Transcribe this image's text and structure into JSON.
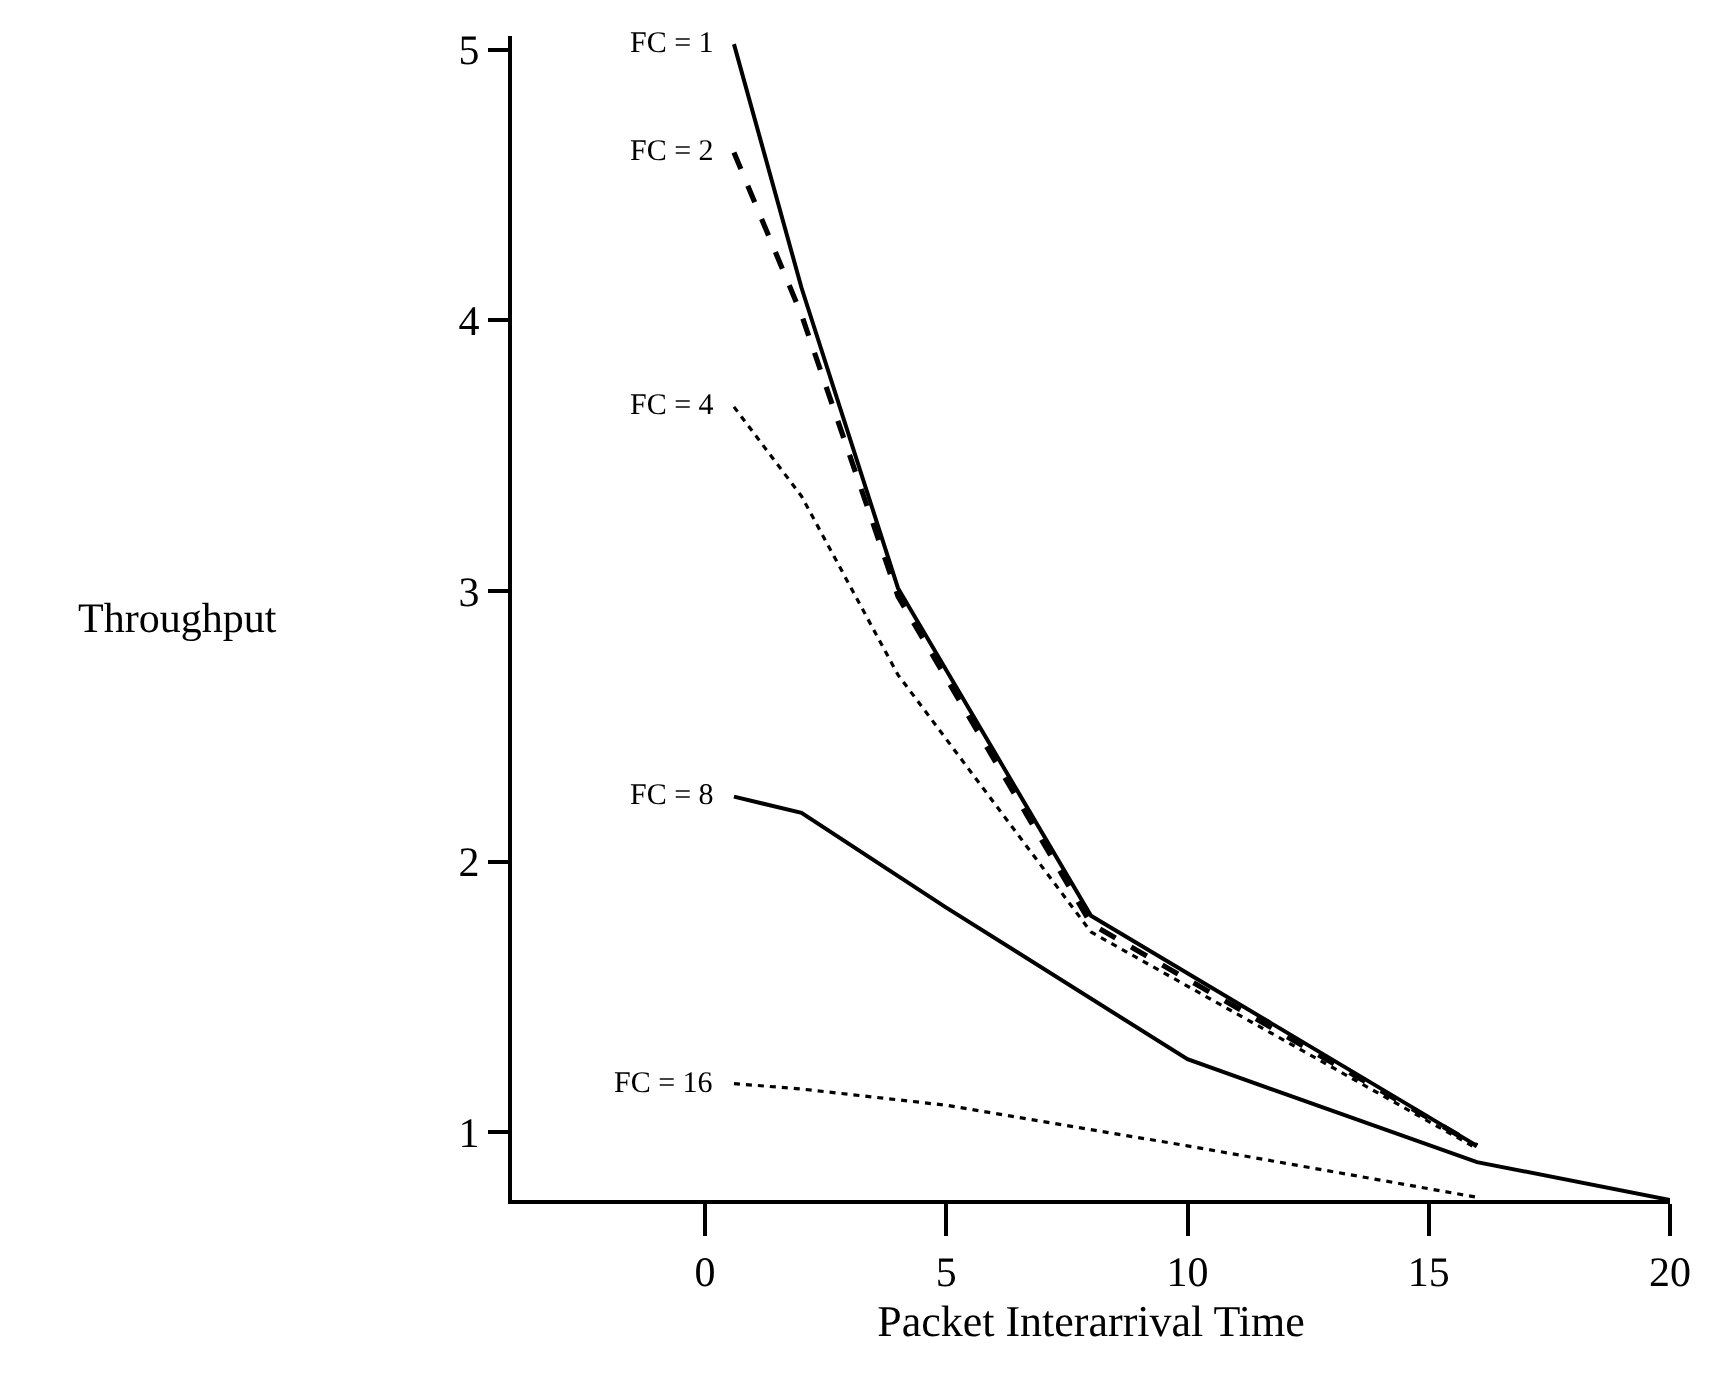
{
  "chart_data": {
    "type": "line",
    "xlabel": "Packet Interarrival Time",
    "ylabel": "Throughput",
    "xlim": [
      -4,
      20
    ],
    "xticks": [
      0,
      5,
      10,
      15,
      20
    ],
    "ylim": [
      0.75,
      5.05
    ],
    "yticks": [
      1,
      2,
      3,
      4,
      5
    ],
    "marker": "none",
    "series": [
      {
        "name": "FC = 1",
        "color": "#000000",
        "line_style": "solid",
        "x": [
          0.6,
          2,
          4,
          8,
          16
        ],
        "values": [
          5.02,
          4.12,
          3.01,
          1.8,
          0.95
        ]
      },
      {
        "name": "FC = 2",
        "color": "#000000",
        "line_style": "dashed",
        "x": [
          0.6,
          2,
          4,
          8,
          16
        ],
        "values": [
          4.62,
          4.02,
          2.98,
          1.77,
          0.95
        ]
      },
      {
        "name": "FC = 4",
        "color": "#000000",
        "line_style": "dotted",
        "x": [
          0.6,
          2,
          4,
          8,
          16
        ],
        "values": [
          3.68,
          3.35,
          2.69,
          1.74,
          0.94
        ]
      },
      {
        "name": "FC = 8",
        "color": "#000000",
        "line_style": "solid",
        "x": [
          0.6,
          2,
          5,
          10,
          16,
          20
        ],
        "values": [
          2.24,
          2.18,
          1.83,
          1.27,
          0.89,
          0.75
        ]
      },
      {
        "name": "FC = 16",
        "color": "#000000",
        "line_style": "dotted",
        "x": [
          0.6,
          2,
          5,
          10,
          16
        ],
        "values": [
          1.18,
          1.16,
          1.1,
          0.95,
          0.76
        ]
      }
    ]
  }
}
